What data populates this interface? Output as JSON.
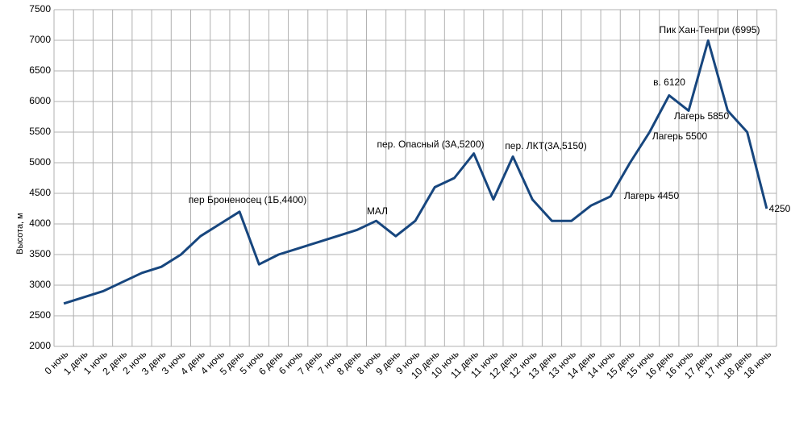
{
  "chart_data": {
    "type": "line",
    "y_label": "Высота, м",
    "categories": [
      "0 ночь",
      "1 день",
      "1 ночь",
      "2 день",
      "2 ночь",
      "3 день",
      "3 ночь",
      "4 день",
      "4 ночь",
      "5 день",
      "5 ночь",
      "6 день",
      "6 ночь",
      "7 день",
      "7 ночь",
      "8 день",
      "8 ночь",
      "9 день",
      "9 ночь",
      "10 день",
      "10 ночь",
      "11 день",
      "11 ночь",
      "12 день",
      "12 ночь",
      "13 день",
      "13 ночь",
      "14 день",
      "14 ночь",
      "15 день",
      "15 ночь",
      "16 день",
      "16 ночь",
      "17 день",
      "17 ночь",
      "18 день",
      "18 ночь"
    ],
    "series": [
      {
        "name": "Высота",
        "color": "#17467e",
        "values": [
          2700,
          2800,
          2900,
          3050,
          3200,
          3300,
          3500,
          3800,
          4000,
          4200,
          3340,
          3500,
          3600,
          3700,
          3800,
          3900,
          4050,
          3800,
          4050,
          4600,
          4750,
          5150,
          4400,
          5100,
          4400,
          4050,
          4050,
          4300,
          4450,
          5000,
          5500,
          6100,
          5850,
          6995,
          5850,
          5500,
          4250
        ]
      }
    ],
    "ylim": [
      2000,
      7500
    ],
    "yticks": [
      2000,
      2500,
      3000,
      3500,
      4000,
      4500,
      5000,
      5500,
      6000,
      6500,
      7000,
      7500
    ],
    "grid": true,
    "annotations": [
      "пер Броненосец (1Б,4400)",
      "МАЛ",
      "пер. Опасный (3А,5200)",
      "пер. ЛКТ(3А,5150)",
      "Лагерь 4450",
      "Лагерь 5500",
      "в. 6120",
      "Лагерь 5850",
      "Пик Хан-Тенгри (6995)",
      "4250"
    ]
  }
}
